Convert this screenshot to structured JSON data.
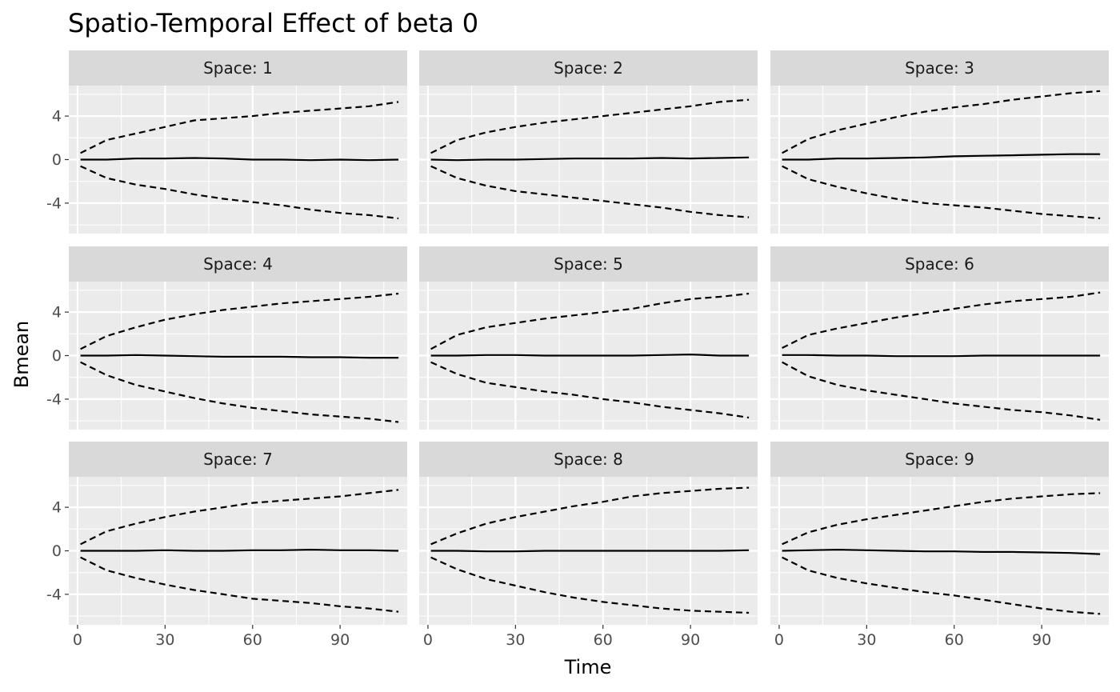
{
  "chart_data": {
    "type": "line",
    "title": "Spatio-Temporal Effect of beta 0",
    "xlabel": "Time",
    "ylabel": "Bmean",
    "facet_label_prefix": "Space: ",
    "xlim": [
      -3,
      113
    ],
    "ylim": [
      -6.8,
      6.8
    ],
    "x_ticks": [
      0,
      30,
      60,
      90
    ],
    "x_tick_labels": [
      "0",
      "30",
      "60",
      "90"
    ],
    "y_ticks": [
      -4,
      0,
      4
    ],
    "y_tick_labels": [
      "-4",
      "0",
      "4"
    ],
    "x_minor_ticks": [
      15,
      45,
      75,
      105
    ],
    "y_minor_ticks": [
      -6,
      -2,
      2,
      6
    ],
    "grid": true,
    "legend": "none",
    "colors": {
      "panel_bg": "#ebebeb",
      "strip_bg": "#d9d9d9",
      "grid": "#ffffff",
      "line": "#000000",
      "tick": "#333333"
    },
    "x": [
      1,
      10,
      20,
      30,
      40,
      50,
      60,
      70,
      80,
      90,
      100,
      110
    ],
    "panels": [
      {
        "space": "1",
        "series": [
          {
            "name": "upper",
            "style": "dashed",
            "values": [
              0.6,
              1.8,
              2.4,
              3.0,
              3.6,
              3.8,
              4.0,
              4.3,
              4.5,
              4.7,
              4.9,
              5.3
            ]
          },
          {
            "name": "mean",
            "style": "solid",
            "values": [
              0.0,
              0.0,
              0.1,
              0.1,
              0.15,
              0.1,
              0.0,
              0.0,
              -0.05,
              0.0,
              -0.05,
              0.0
            ]
          },
          {
            "name": "lower",
            "style": "dashed",
            "values": [
              -0.6,
              -1.7,
              -2.3,
              -2.7,
              -3.2,
              -3.6,
              -3.9,
              -4.2,
              -4.6,
              -4.9,
              -5.1,
              -5.4
            ]
          }
        ]
      },
      {
        "space": "2",
        "series": [
          {
            "name": "upper",
            "style": "dashed",
            "values": [
              0.6,
              1.8,
              2.5,
              3.0,
              3.4,
              3.7,
              4.0,
              4.3,
              4.6,
              4.9,
              5.3,
              5.5
            ]
          },
          {
            "name": "mean",
            "style": "solid",
            "values": [
              0.0,
              -0.05,
              0.0,
              0.0,
              0.05,
              0.1,
              0.1,
              0.1,
              0.15,
              0.1,
              0.15,
              0.2
            ]
          },
          {
            "name": "lower",
            "style": "dashed",
            "values": [
              -0.6,
              -1.7,
              -2.4,
              -2.9,
              -3.2,
              -3.5,
              -3.8,
              -4.1,
              -4.4,
              -4.8,
              -5.1,
              -5.3
            ]
          }
        ]
      },
      {
        "space": "3",
        "series": [
          {
            "name": "upper",
            "style": "dashed",
            "values": [
              0.6,
              1.9,
              2.7,
              3.3,
              3.9,
              4.4,
              4.8,
              5.1,
              5.5,
              5.8,
              6.1,
              6.3
            ]
          },
          {
            "name": "mean",
            "style": "solid",
            "values": [
              0.0,
              0.0,
              0.1,
              0.1,
              0.15,
              0.2,
              0.3,
              0.35,
              0.4,
              0.45,
              0.5,
              0.5
            ]
          },
          {
            "name": "lower",
            "style": "dashed",
            "values": [
              -0.6,
              -1.8,
              -2.5,
              -3.1,
              -3.6,
              -4.0,
              -4.2,
              -4.4,
              -4.7,
              -5.0,
              -5.2,
              -5.4
            ]
          }
        ]
      },
      {
        "space": "4",
        "series": [
          {
            "name": "upper",
            "style": "dashed",
            "values": [
              0.6,
              1.8,
              2.6,
              3.3,
              3.8,
              4.2,
              4.5,
              4.8,
              5.0,
              5.2,
              5.4,
              5.7
            ]
          },
          {
            "name": "mean",
            "style": "solid",
            "values": [
              0.0,
              0.0,
              0.05,
              0.0,
              -0.05,
              -0.1,
              -0.1,
              -0.1,
              -0.15,
              -0.15,
              -0.2,
              -0.2
            ]
          },
          {
            "name": "lower",
            "style": "dashed",
            "values": [
              -0.6,
              -1.8,
              -2.7,
              -3.3,
              -3.9,
              -4.4,
              -4.8,
              -5.1,
              -5.4,
              -5.6,
              -5.8,
              -6.1
            ]
          }
        ]
      },
      {
        "space": "5",
        "series": [
          {
            "name": "upper",
            "style": "dashed",
            "values": [
              0.6,
              1.9,
              2.6,
              3.0,
              3.4,
              3.7,
              4.0,
              4.3,
              4.8,
              5.2,
              5.4,
              5.7
            ]
          },
          {
            "name": "mean",
            "style": "solid",
            "values": [
              0.0,
              0.0,
              0.05,
              0.05,
              0.0,
              0.0,
              0.0,
              0.0,
              0.05,
              0.1,
              0.0,
              0.0
            ]
          },
          {
            "name": "lower",
            "style": "dashed",
            "values": [
              -0.6,
              -1.7,
              -2.5,
              -2.9,
              -3.3,
              -3.6,
              -4.0,
              -4.3,
              -4.7,
              -5.0,
              -5.3,
              -5.7
            ]
          }
        ]
      },
      {
        "space": "6",
        "series": [
          {
            "name": "upper",
            "style": "dashed",
            "values": [
              0.7,
              1.9,
              2.5,
              3.0,
              3.5,
              3.9,
              4.3,
              4.7,
              5.0,
              5.2,
              5.4,
              5.8
            ]
          },
          {
            "name": "mean",
            "style": "solid",
            "values": [
              0.05,
              0.05,
              0.0,
              0.0,
              -0.05,
              -0.05,
              -0.05,
              0.0,
              0.0,
              0.0,
              0.0,
              0.0
            ]
          },
          {
            "name": "lower",
            "style": "dashed",
            "values": [
              -0.6,
              -1.9,
              -2.7,
              -3.2,
              -3.6,
              -4.0,
              -4.4,
              -4.7,
              -5.0,
              -5.2,
              -5.5,
              -5.9
            ]
          }
        ]
      },
      {
        "space": "7",
        "series": [
          {
            "name": "upper",
            "style": "dashed",
            "values": [
              0.6,
              1.8,
              2.5,
              3.1,
              3.6,
              4.0,
              4.4,
              4.6,
              4.8,
              5.0,
              5.3,
              5.6
            ]
          },
          {
            "name": "mean",
            "style": "solid",
            "values": [
              0.0,
              0.0,
              0.0,
              0.05,
              0.0,
              0.0,
              0.05,
              0.05,
              0.1,
              0.05,
              0.05,
              0.0
            ]
          },
          {
            "name": "lower",
            "style": "dashed",
            "values": [
              -0.6,
              -1.8,
              -2.5,
              -3.1,
              -3.6,
              -4.0,
              -4.4,
              -4.6,
              -4.8,
              -5.1,
              -5.3,
              -5.6
            ]
          }
        ]
      },
      {
        "space": "8",
        "series": [
          {
            "name": "upper",
            "style": "dashed",
            "values": [
              0.6,
              1.6,
              2.5,
              3.1,
              3.6,
              4.1,
              4.5,
              5.0,
              5.3,
              5.5,
              5.7,
              5.8
            ]
          },
          {
            "name": "mean",
            "style": "solid",
            "values": [
              0.0,
              0.0,
              -0.05,
              -0.05,
              0.0,
              0.0,
              0.0,
              0.0,
              0.0,
              0.0,
              0.0,
              0.05
            ]
          },
          {
            "name": "lower",
            "style": "dashed",
            "values": [
              -0.6,
              -1.7,
              -2.6,
              -3.2,
              -3.8,
              -4.3,
              -4.7,
              -5.0,
              -5.3,
              -5.5,
              -5.6,
              -5.7
            ]
          }
        ]
      },
      {
        "space": "9",
        "series": [
          {
            "name": "upper",
            "style": "dashed",
            "values": [
              0.6,
              1.7,
              2.4,
              2.9,
              3.3,
              3.7,
              4.1,
              4.5,
              4.8,
              5.0,
              5.2,
              5.3
            ]
          },
          {
            "name": "mean",
            "style": "solid",
            "values": [
              0.0,
              0.05,
              0.1,
              0.05,
              0.0,
              -0.05,
              -0.05,
              -0.1,
              -0.1,
              -0.15,
              -0.2,
              -0.3
            ]
          },
          {
            "name": "lower",
            "style": "dashed",
            "values": [
              -0.6,
              -1.8,
              -2.5,
              -3.0,
              -3.4,
              -3.8,
              -4.1,
              -4.5,
              -4.9,
              -5.3,
              -5.6,
              -5.8
            ]
          }
        ]
      }
    ]
  }
}
